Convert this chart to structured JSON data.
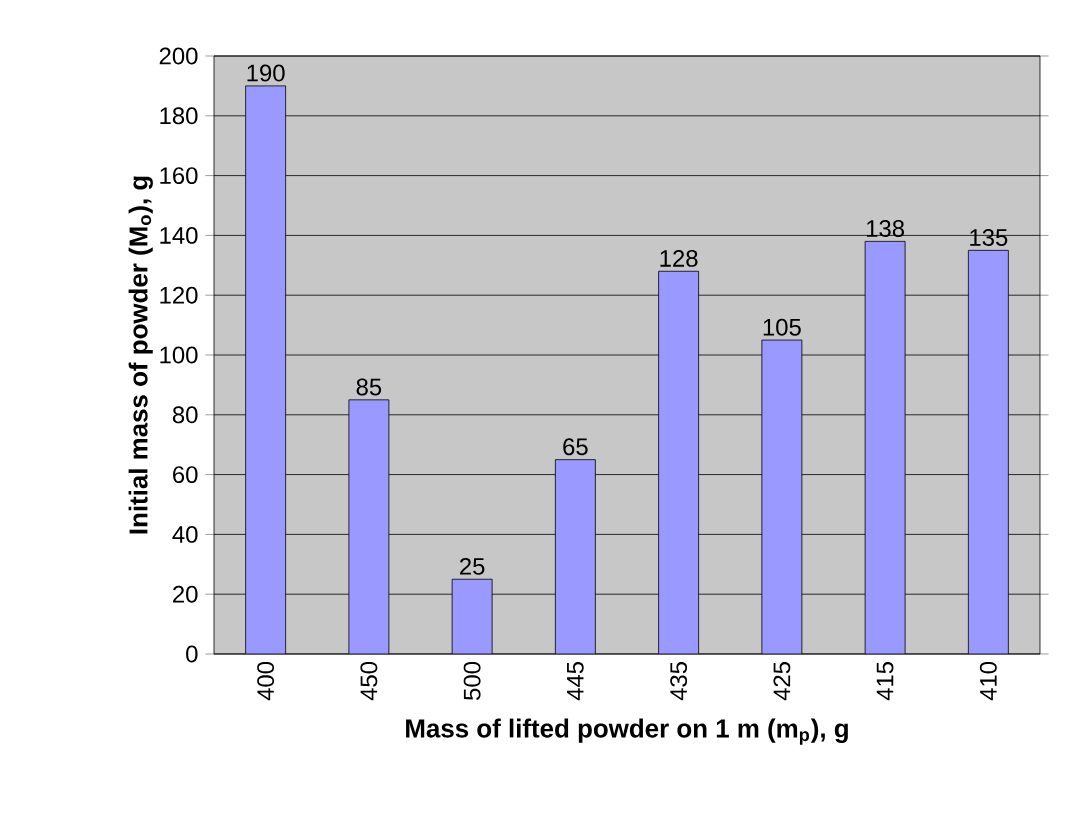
{
  "chart_data": {
    "type": "bar",
    "xlabel": "Mass of lifted powder on 1 m (m$_{p}$), g",
    "ylabel": "Initial mass of powder (M$_{o}$), g",
    "categories": [
      "400",
      "450",
      "500",
      "445",
      "435",
      "425",
      "415",
      "410"
    ],
    "values": [
      190,
      85,
      25,
      65,
      128,
      105,
      138,
      135
    ],
    "color": "#9999ff",
    "ylim": [
      0,
      200
    ],
    "yticks": [
      0,
      20,
      40,
      60,
      80,
      100,
      120,
      140,
      160,
      180,
      200
    ],
    "grid": "y",
    "data_labels": true
  }
}
